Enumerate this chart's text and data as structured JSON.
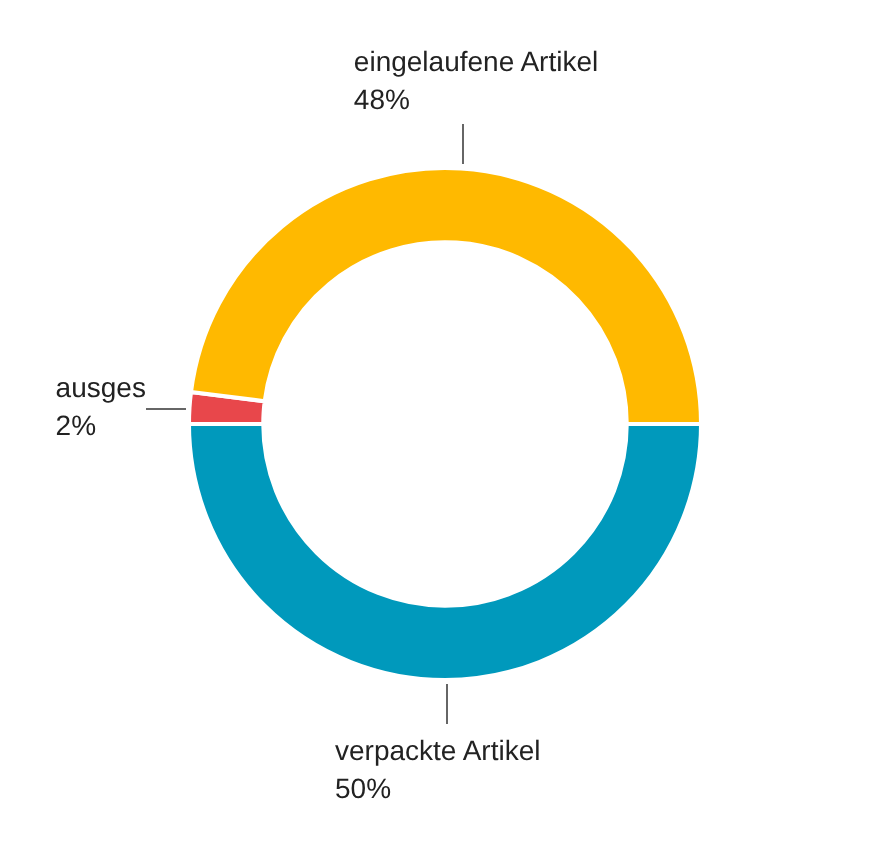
{
  "chart_data": {
    "type": "donut",
    "categories": [
      "verpackte Artikel",
      "ausges",
      "eingelaufene Artikel"
    ],
    "values": [
      50,
      2,
      48
    ],
    "value_labels": [
      "50%",
      "2%",
      "48%"
    ],
    "colors": [
      "#0099bc",
      "#e8474b",
      "#ffb900"
    ],
    "legend": false
  }
}
